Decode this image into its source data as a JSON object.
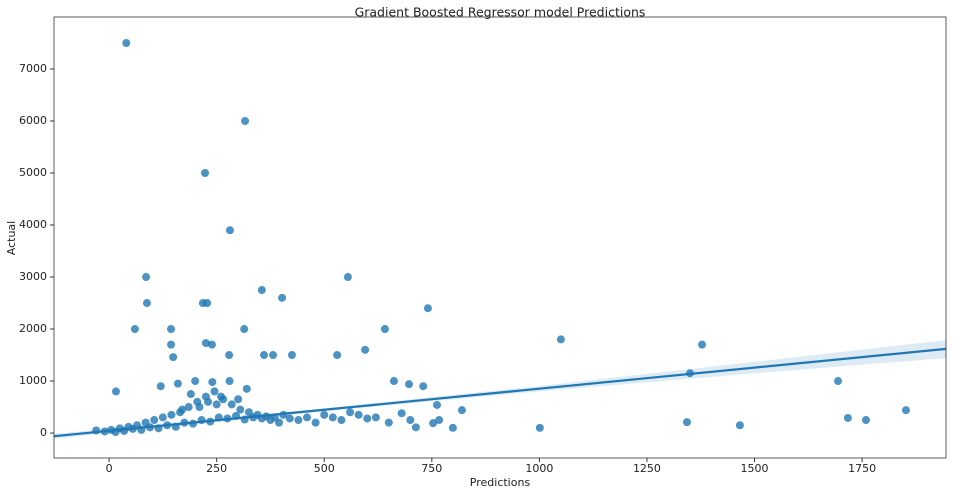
{
  "chart_data": {
    "type": "regplot",
    "title": "Gradient Boosted Regressor model Predictions",
    "xlabel": "Predictions",
    "ylabel": "Actual",
    "xlim": [
      -128,
      1945
    ],
    "ylim": [
      -480,
      8000
    ],
    "xticks": [
      0,
      250,
      500,
      750,
      1000,
      1250,
      1500,
      1750
    ],
    "yticks": [
      0,
      1000,
      2000,
      3000,
      4000,
      5000,
      6000,
      7000
    ],
    "points": {
      "color": "#1f77b4",
      "x": [
        40,
        316,
        223,
        281,
        86,
        555,
        88,
        218,
        228,
        355,
        402,
        741,
        60,
        144,
        314,
        641,
        1050,
        1378,
        144,
        225,
        239,
        595,
        149,
        279,
        360,
        381,
        425,
        530,
        1350,
        1694,
        16,
        662,
        697,
        730,
        820,
        1001,
        1343,
        1466,
        1717,
        1759,
        1852,
        799,
        767,
        753,
        713,
        762,
        -30,
        -10,
        5,
        15,
        25,
        35,
        45,
        55,
        65,
        75,
        85,
        95,
        105,
        115,
        125,
        135,
        145,
        155,
        165,
        175,
        185,
        195,
        205,
        215,
        225,
        235,
        245,
        255,
        265,
        275,
        285,
        295,
        305,
        315,
        325,
        335,
        345,
        355,
        365,
        375,
        385,
        395,
        405,
        420,
        440,
        460,
        480,
        500,
        520,
        540,
        560,
        580,
        600,
        620,
        650,
        680,
        700,
        120,
        160,
        200,
        240,
        280,
        320,
        190,
        230,
        260,
        300,
        170,
        210,
        250
      ],
      "y": [
        7500,
        6000,
        5000,
        3900,
        3000,
        3000,
        2500,
        2500,
        2500,
        2750,
        2600,
        2400,
        2000,
        2000,
        2000,
        2000,
        1800,
        1700,
        1700,
        1730,
        1700,
        1600,
        1460,
        1500,
        1500,
        1500,
        1500,
        1500,
        1150,
        1000,
        800,
        1000,
        940,
        900,
        440,
        100,
        210,
        150,
        290,
        250,
        440,
        100,
        250,
        190,
        110,
        540,
        50,
        30,
        60,
        20,
        90,
        40,
        120,
        80,
        150,
        60,
        200,
        110,
        250,
        90,
        300,
        150,
        350,
        120,
        400,
        200,
        500,
        180,
        600,
        250,
        700,
        220,
        800,
        300,
        650,
        280,
        550,
        330,
        450,
        260,
        400,
        300,
        350,
        280,
        320,
        250,
        300,
        200,
        350,
        280,
        250,
        300,
        200,
        350,
        300,
        250,
        400,
        350,
        280,
        300,
        200,
        380,
        250,
        900,
        950,
        1000,
        980,
        1000,
        850,
        750,
        600,
        700,
        650,
        450,
        500,
        550
      ]
    },
    "fit": {
      "color": "#1f77b4",
      "band_color": "#1f77b4",
      "x": [
        -128,
        500,
        1000,
        1500,
        1945
      ],
      "y": [
        -61,
        448,
        853,
        1258,
        1618
      ],
      "ci_lower": [
        -110,
        420,
        800,
        1150,
        1440
      ],
      "ci_upper": [
        -15,
        475,
        905,
        1370,
        1790
      ]
    }
  }
}
